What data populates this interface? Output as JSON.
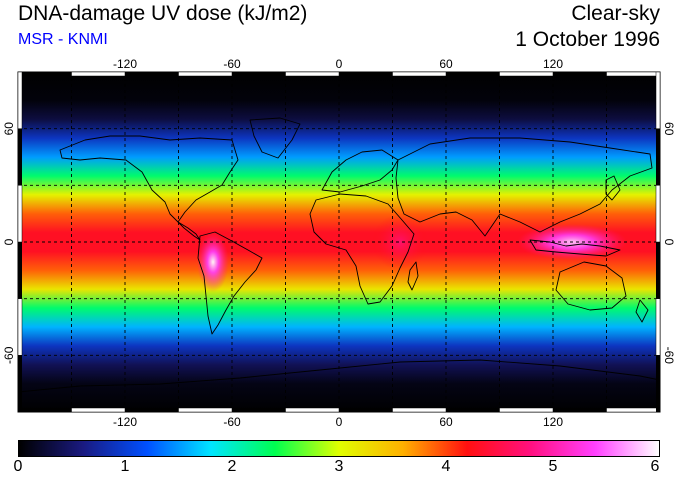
{
  "header": {
    "title": "DNA-damage UV dose (kJ/m2)",
    "subtitle": "MSR - KNMI",
    "condition": "Clear-sky",
    "date": "1 October 1996"
  },
  "map": {
    "projection": "equirectangular",
    "lon_range": [
      -180,
      180
    ],
    "lat_range": [
      -90,
      90
    ],
    "grid": {
      "lon_step": 30,
      "lat_step": 30,
      "style": "dashed"
    },
    "lon_tick_labels": [
      "-120",
      "-60",
      "0",
      "60",
      "120"
    ],
    "lon_tick_values": [
      -120,
      -60,
      0,
      60,
      120
    ],
    "lat_tick_labels": [
      "60",
      "0",
      "-60"
    ],
    "lat_tick_values": [
      60,
      0,
      -60
    ],
    "field_profile": {
      "lat": [
        -90,
        -75,
        -65,
        -55,
        -45,
        -35,
        -25,
        -15,
        -5,
        5,
        15,
        25,
        35,
        45,
        55,
        65,
        75,
        90
      ],
      "dose": [
        0.0,
        0.1,
        0.4,
        0.9,
        1.6,
        2.3,
        3.2,
        3.9,
        4.3,
        4.3,
        3.9,
        3.1,
        2.3,
        1.5,
        0.9,
        0.3,
        0.05,
        0.0
      ]
    },
    "high_spots": [
      {
        "name": "andes",
        "lon": -70,
        "lat": -15,
        "dose": 5.4
      },
      {
        "name": "indonesia",
        "lon": 125,
        "lat": 0,
        "dose": 5.3
      },
      {
        "name": "east-africa",
        "lon": 35,
        "lat": 0,
        "dose": 4.6
      }
    ]
  },
  "colorbar": {
    "min": 0,
    "max": 6,
    "tick_labels": [
      "0",
      "1",
      "2",
      "3",
      "4",
      "5",
      "6"
    ],
    "tick_values": [
      0,
      1,
      2,
      3,
      4,
      5,
      6
    ],
    "colors": [
      "#000000",
      "#1a1a80",
      "#0050ff",
      "#00e5ff",
      "#00ff50",
      "#e0ff00",
      "#ffb000",
      "#ff1010",
      "#ff1080",
      "#ff40ff",
      "#ffffff"
    ]
  }
}
